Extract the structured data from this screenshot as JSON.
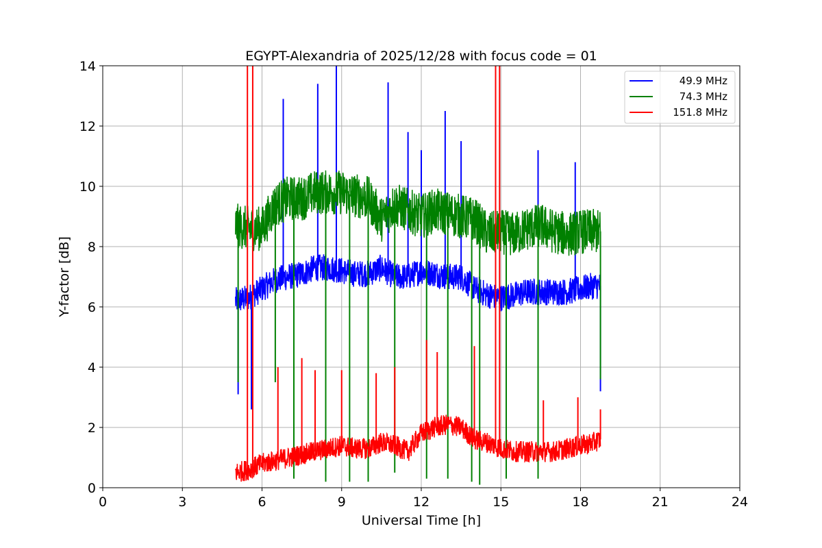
{
  "chart_data": {
    "type": "line",
    "title": "EGYPT-Alexandria of 2025/12/28 with focus code = 01",
    "xlabel": "Universal Time [h]",
    "ylabel": "Y-factor [dB]",
    "xlim": [
      0,
      24
    ],
    "ylim": [
      0,
      14
    ],
    "xticks": [
      0,
      3,
      6,
      9,
      12,
      15,
      18,
      21,
      24
    ],
    "yticks": [
      0,
      2,
      4,
      6,
      8,
      10,
      12,
      14
    ],
    "grid": true,
    "legend_position": "top-right",
    "series": [
      {
        "name": "49.9 MHz",
        "color": "#0000ff",
        "x": [
          5.0,
          5.5,
          6.0,
          6.5,
          7.0,
          7.5,
          8.0,
          8.5,
          9.0,
          9.5,
          10.0,
          10.5,
          11.0,
          11.5,
          12.0,
          12.5,
          13.0,
          13.5,
          14.0,
          14.5,
          15.0,
          15.5,
          16.0,
          16.5,
          17.0,
          17.5,
          18.0,
          18.5,
          18.75
        ],
        "y": [
          6.2,
          6.3,
          6.6,
          6.9,
          7.0,
          7.1,
          7.3,
          7.3,
          7.2,
          7.1,
          7.1,
          7.3,
          7.0,
          7.0,
          7.2,
          7.1,
          7.0,
          7.0,
          6.6,
          6.4,
          6.3,
          6.4,
          6.5,
          6.5,
          6.5,
          6.5,
          6.6,
          6.7,
          6.7
        ],
        "spikes": [
          [
            5.1,
            3.1
          ],
          [
            5.6,
            2.6
          ],
          [
            6.8,
            12.9
          ],
          [
            8.1,
            13.4
          ],
          [
            8.8,
            14.0
          ],
          [
            10.75,
            13.45
          ],
          [
            11.5,
            11.8
          ],
          [
            12.0,
            11.2
          ],
          [
            12.9,
            12.5
          ],
          [
            13.5,
            11.5
          ],
          [
            16.4,
            11.2
          ],
          [
            17.8,
            10.8
          ],
          [
            18.75,
            3.2
          ]
        ]
      },
      {
        "name": "74.3 MHz",
        "color": "#008000",
        "x": [
          5.0,
          5.5,
          6.0,
          6.5,
          7.0,
          7.5,
          8.0,
          8.5,
          9.0,
          9.5,
          10.0,
          10.5,
          11.0,
          11.5,
          12.0,
          12.5,
          13.0,
          13.5,
          14.0,
          14.5,
          15.0,
          15.5,
          16.0,
          16.5,
          17.0,
          17.5,
          18.0,
          18.5,
          18.75
        ],
        "y": [
          8.7,
          8.6,
          8.6,
          9.4,
          9.6,
          9.6,
          9.8,
          9.8,
          9.8,
          9.7,
          9.6,
          8.9,
          9.4,
          9.2,
          9.0,
          9.2,
          9.1,
          9.0,
          8.9,
          8.4,
          8.5,
          8.4,
          8.6,
          8.7,
          8.5,
          8.4,
          8.5,
          8.5,
          8.5
        ],
        "spikes": [
          [
            5.1,
            3.5
          ],
          [
            6.5,
            3.5
          ],
          [
            7.2,
            0.3
          ],
          [
            8.4,
            0.2
          ],
          [
            9.3,
            0.2
          ],
          [
            10.0,
            0.2
          ],
          [
            11.0,
            0.5
          ],
          [
            12.2,
            0.3
          ],
          [
            13.0,
            0.3
          ],
          [
            13.9,
            0.2
          ],
          [
            14.2,
            0.1
          ],
          [
            15.2,
            0.3
          ],
          [
            16.4,
            0.3
          ],
          [
            18.75,
            3.6
          ]
        ]
      },
      {
        "name": "151.8 MHz",
        "color": "#ff0000",
        "x": [
          5.0,
          5.5,
          6.0,
          6.5,
          7.0,
          7.5,
          8.0,
          8.5,
          9.0,
          9.5,
          10.0,
          10.5,
          11.0,
          11.5,
          12.0,
          12.5,
          13.0,
          13.5,
          14.0,
          14.5,
          15.0,
          15.5,
          16.0,
          16.5,
          17.0,
          17.5,
          18.0,
          18.5,
          18.75
        ],
        "y": [
          0.5,
          0.6,
          0.8,
          0.9,
          1.0,
          1.1,
          1.2,
          1.3,
          1.4,
          1.3,
          1.3,
          1.5,
          1.4,
          1.2,
          1.8,
          2.0,
          2.1,
          2.0,
          1.6,
          1.5,
          1.3,
          1.2,
          1.2,
          1.2,
          1.2,
          1.3,
          1.4,
          1.5,
          1.6
        ],
        "spikes": [
          [
            5.45,
            14.0
          ],
          [
            5.65,
            14.0
          ],
          [
            6.6,
            4.0
          ],
          [
            7.5,
            4.3
          ],
          [
            8.0,
            3.9
          ],
          [
            9.0,
            3.9
          ],
          [
            10.3,
            3.8
          ],
          [
            11.0,
            4.0
          ],
          [
            12.2,
            4.9
          ],
          [
            12.6,
            4.5
          ],
          [
            14.0,
            4.7
          ],
          [
            14.8,
            14.0
          ],
          [
            14.95,
            14.0
          ],
          [
            16.6,
            2.9
          ],
          [
            17.9,
            3.0
          ],
          [
            18.75,
            2.6
          ]
        ]
      }
    ]
  }
}
